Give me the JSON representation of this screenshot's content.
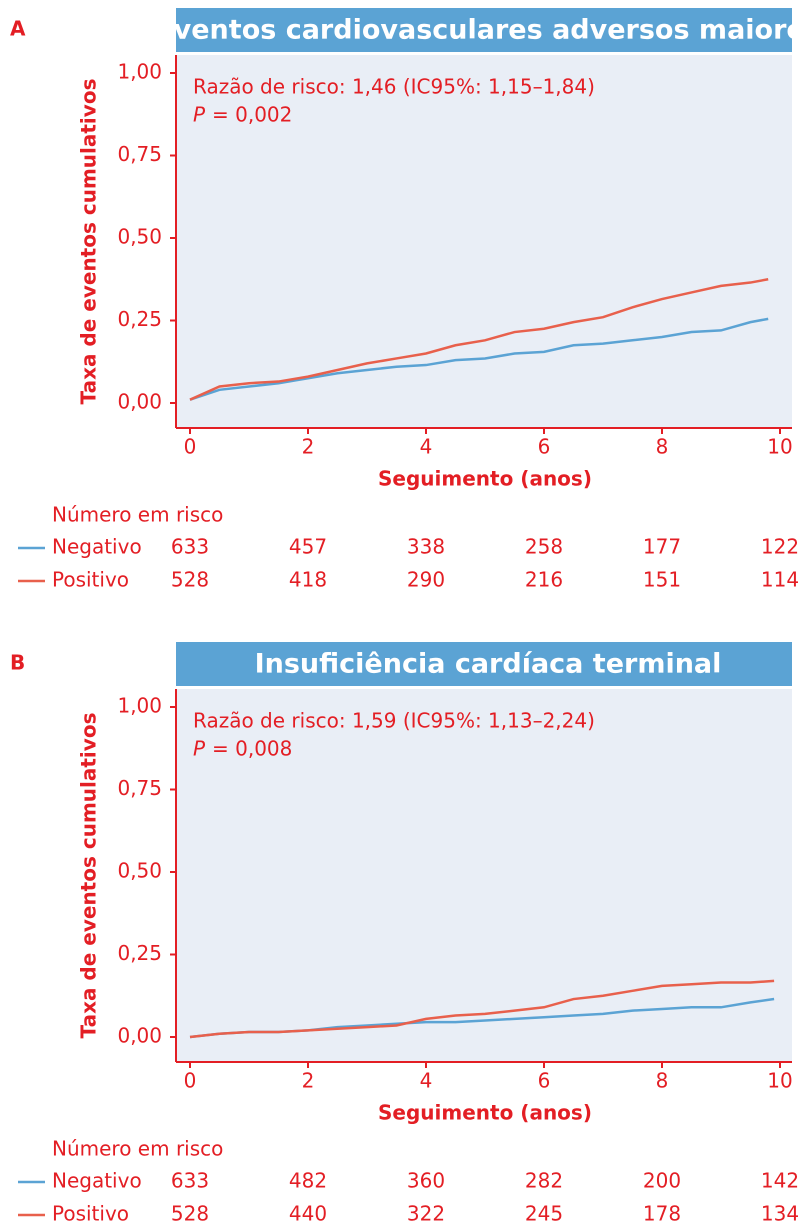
{
  "chart_data": [
    {
      "type": "line",
      "label": "A",
      "title": "Eventos cardiovasculares adversos maiores",
      "annotation": "Razão de risco: 1,46 (IC95%: 1,15–1,84)",
      "p_symbol": "P",
      "p_text": "= 0,002",
      "x_label": "Seguimento (anos)",
      "y_label": "Taxa de eventos cumulativos",
      "xlim": [
        0,
        10
      ],
      "xticks": [
        0,
        2,
        4,
        6,
        8,
        10
      ],
      "ylim": [
        0,
        1
      ],
      "yticks": [
        {
          "value": 0,
          "label": "0,00"
        },
        {
          "value": 0.25,
          "label": "0,25"
        },
        {
          "value": 0.5,
          "label": "0,50"
        },
        {
          "value": 0.75,
          "label": "0,75"
        },
        {
          "value": 1,
          "label": "1,00"
        }
      ],
      "x": [
        0,
        0.5,
        1,
        1.5,
        2,
        2.5,
        3,
        3.5,
        4,
        4.5,
        5,
        5.5,
        6,
        6.5,
        7,
        7.5,
        8,
        8.5,
        9,
        9.5,
        9.8
      ],
      "risk_title": "Número em risco",
      "series": [
        {
          "name": "Negativo",
          "color": "#5ba3d4",
          "values": [
            0.01,
            0.04,
            0.05,
            0.06,
            0.075,
            0.09,
            0.1,
            0.11,
            0.115,
            0.13,
            0.135,
            0.15,
            0.155,
            0.175,
            0.18,
            0.19,
            0.2,
            0.215,
            0.22,
            0.245,
            0.255
          ],
          "at_risk": [
            633,
            457,
            338,
            258,
            177,
            122
          ]
        },
        {
          "name": "Positivo",
          "color": "#e8604c",
          "values": [
            0.01,
            0.05,
            0.06,
            0.065,
            0.08,
            0.1,
            0.12,
            0.135,
            0.15,
            0.175,
            0.19,
            0.215,
            0.225,
            0.245,
            0.26,
            0.29,
            0.315,
            0.335,
            0.355,
            0.365,
            0.375
          ],
          "at_risk": [
            528,
            418,
            290,
            216,
            151,
            114
          ]
        }
      ]
    },
    {
      "type": "line",
      "label": "B",
      "title": "Insuficiência cardíaca terminal",
      "annotation": "Razão de risco: 1,59 (IC95%: 1,13–2,24)",
      "p_symbol": "P",
      "p_text": "= 0,008",
      "x_label": "Seguimento (anos)",
      "y_label": "Taxa de eventos cumulativos",
      "xlim": [
        0,
        10
      ],
      "xticks": [
        0,
        2,
        4,
        6,
        8,
        10
      ],
      "ylim": [
        0,
        1
      ],
      "yticks": [
        {
          "value": 0,
          "label": "0,00"
        },
        {
          "value": 0.25,
          "label": "0,25"
        },
        {
          "value": 0.5,
          "label": "0,50"
        },
        {
          "value": 0.75,
          "label": "0,75"
        },
        {
          "value": 1,
          "label": "1,00"
        }
      ],
      "x": [
        0,
        0.5,
        1,
        1.5,
        2,
        2.5,
        3,
        3.5,
        4,
        4.5,
        5,
        5.5,
        6,
        6.5,
        7,
        7.5,
        8,
        8.5,
        9,
        9.5,
        9.9
      ],
      "risk_title": "Número em risco",
      "series": [
        {
          "name": "Negativo",
          "color": "#5ba3d4",
          "values": [
            0,
            0.01,
            0.015,
            0.015,
            0.02,
            0.03,
            0.035,
            0.04,
            0.045,
            0.045,
            0.05,
            0.055,
            0.06,
            0.065,
            0.07,
            0.08,
            0.085,
            0.09,
            0.09,
            0.105,
            0.115
          ],
          "at_risk": [
            633,
            482,
            360,
            282,
            200,
            142
          ]
        },
        {
          "name": "Positivo",
          "color": "#e8604c",
          "values": [
            0,
            0.01,
            0.015,
            0.015,
            0.02,
            0.025,
            0.03,
            0.035,
            0.055,
            0.065,
            0.07,
            0.08,
            0.09,
            0.115,
            0.125,
            0.14,
            0.155,
            0.16,
            0.165,
            0.165,
            0.17
          ],
          "at_risk": [
            528,
            440,
            322,
            245,
            178,
            134
          ]
        }
      ]
    }
  ]
}
